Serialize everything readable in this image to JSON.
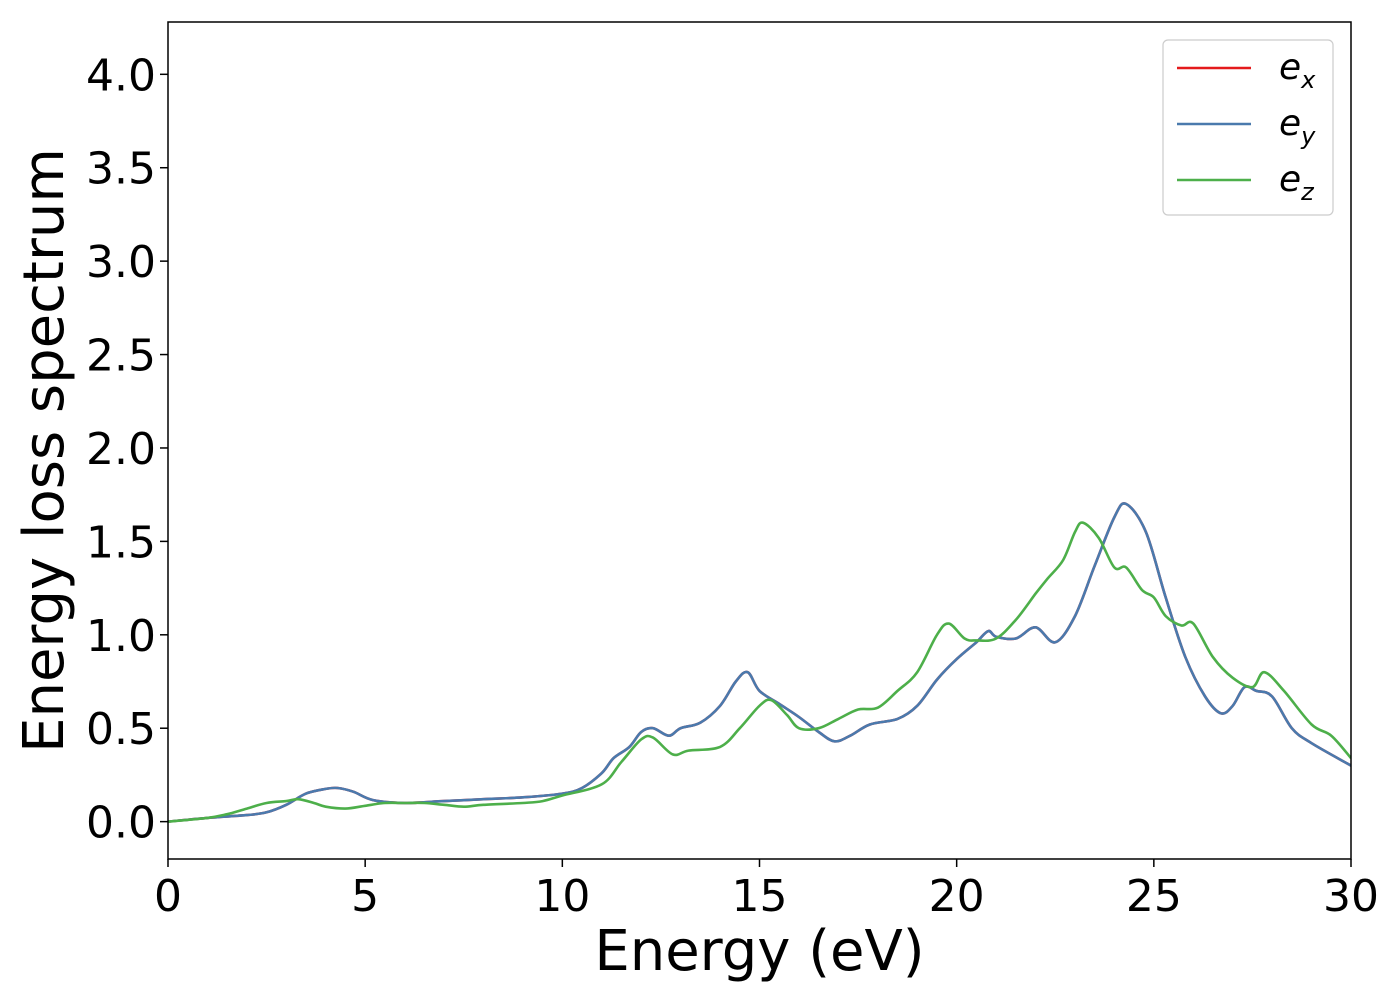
{
  "chart_data": {
    "type": "line",
    "title": "",
    "xlabel": "Energy (eV)",
    "ylabel": "Energy loss spectrum",
    "xlim": [
      0,
      30
    ],
    "ylim": [
      -0.2,
      4.28
    ],
    "xticks": [
      "0",
      "5",
      "10",
      "15",
      "20",
      "25",
      "30"
    ],
    "yticks": [
      "0.0",
      "0.5",
      "1.0",
      "1.5",
      "2.0",
      "2.5",
      "3.0",
      "3.5",
      "4.0"
    ],
    "grid": false,
    "legend_position": "top-right",
    "series": [
      {
        "name": "e",
        "sub": "x",
        "color": "#e41a1c",
        "x": [
          0,
          1,
          2,
          2.5,
          3,
          3.5,
          4,
          4.3,
          4.7,
          5.2,
          6,
          7,
          8,
          9,
          10,
          10.5,
          11,
          11.3,
          11.7,
          12,
          12.3,
          12.7,
          13,
          13.5,
          14,
          14.4,
          14.7,
          15,
          15.5,
          16,
          16.5,
          16.9,
          17.3,
          17.8,
          18.5,
          19,
          19.5,
          20,
          20.5,
          20.8,
          21,
          21.5,
          22,
          22.5,
          23,
          23.5,
          24,
          24.3,
          24.8,
          25.3,
          25.8,
          26.3,
          26.7,
          27,
          27.3,
          27.6,
          28,
          28.5,
          29,
          30
        ],
        "y": [
          0,
          0.02,
          0.035,
          0.05,
          0.09,
          0.15,
          0.175,
          0.18,
          0.16,
          0.115,
          0.1,
          0.11,
          0.12,
          0.13,
          0.15,
          0.18,
          0.26,
          0.34,
          0.4,
          0.48,
          0.5,
          0.46,
          0.5,
          0.53,
          0.62,
          0.75,
          0.8,
          0.7,
          0.63,
          0.56,
          0.48,
          0.43,
          0.46,
          0.52,
          0.55,
          0.62,
          0.76,
          0.87,
          0.96,
          1.02,
          0.99,
          0.98,
          1.04,
          0.96,
          1.1,
          1.37,
          1.63,
          1.7,
          1.55,
          1.2,
          0.88,
          0.67,
          0.58,
          0.62,
          0.72,
          0.7,
          0.67,
          0.5,
          0.42,
          0.3
        ]
      },
      {
        "name": "e",
        "sub": "y",
        "color": "#4a7aad",
        "x": [
          0,
          1,
          2,
          2.5,
          3,
          3.5,
          4,
          4.3,
          4.7,
          5.2,
          6,
          7,
          8,
          9,
          10,
          10.5,
          11,
          11.3,
          11.7,
          12,
          12.3,
          12.7,
          13,
          13.5,
          14,
          14.4,
          14.7,
          15,
          15.5,
          16,
          16.5,
          16.9,
          17.3,
          17.8,
          18.5,
          19,
          19.5,
          20,
          20.5,
          20.8,
          21,
          21.5,
          22,
          22.5,
          23,
          23.5,
          24,
          24.3,
          24.8,
          25.3,
          25.8,
          26.3,
          26.7,
          27,
          27.3,
          27.6,
          28,
          28.5,
          29,
          30
        ],
        "y": [
          0,
          0.02,
          0.035,
          0.05,
          0.09,
          0.15,
          0.175,
          0.18,
          0.16,
          0.115,
          0.1,
          0.11,
          0.12,
          0.13,
          0.15,
          0.18,
          0.26,
          0.34,
          0.4,
          0.48,
          0.5,
          0.46,
          0.5,
          0.53,
          0.62,
          0.75,
          0.8,
          0.7,
          0.63,
          0.56,
          0.48,
          0.43,
          0.46,
          0.52,
          0.55,
          0.62,
          0.76,
          0.87,
          0.96,
          1.02,
          0.99,
          0.98,
          1.04,
          0.96,
          1.1,
          1.37,
          1.63,
          1.7,
          1.55,
          1.2,
          0.88,
          0.67,
          0.58,
          0.62,
          0.72,
          0.7,
          0.67,
          0.5,
          0.42,
          0.3
        ]
      },
      {
        "name": "e",
        "sub": "z",
        "color": "#4daf4a",
        "x": [
          0,
          1,
          1.5,
          2,
          2.5,
          3,
          3.3,
          3.7,
          4,
          4.5,
          5,
          5.5,
          6,
          6.5,
          7,
          7.5,
          8,
          9,
          9.5,
          10,
          11,
          11.5,
          12,
          12.3,
          12.8,
          13.2,
          14,
          14.5,
          15,
          15.3,
          15.7,
          16,
          16.5,
          17,
          17.5,
          18,
          18.5,
          19,
          19.5,
          19.8,
          20.2,
          20.5,
          21,
          21.5,
          22,
          22.3,
          22.7,
          23,
          23.2,
          23.6,
          24,
          24.3,
          24.7,
          25,
          25.3,
          25.7,
          26,
          26.5,
          27,
          27.5,
          27.8,
          28.3,
          29,
          29.5,
          30
        ],
        "y": [
          0,
          0.02,
          0.04,
          0.07,
          0.1,
          0.11,
          0.12,
          0.1,
          0.08,
          0.07,
          0.085,
          0.1,
          0.1,
          0.1,
          0.09,
          0.08,
          0.09,
          0.1,
          0.11,
          0.14,
          0.2,
          0.32,
          0.44,
          0.45,
          0.36,
          0.38,
          0.4,
          0.5,
          0.62,
          0.65,
          0.57,
          0.5,
          0.5,
          0.55,
          0.6,
          0.61,
          0.7,
          0.8,
          1.0,
          1.06,
          0.98,
          0.97,
          0.98,
          1.08,
          1.22,
          1.3,
          1.4,
          1.55,
          1.6,
          1.52,
          1.36,
          1.36,
          1.24,
          1.2,
          1.1,
          1.05,
          1.06,
          0.88,
          0.77,
          0.72,
          0.8,
          0.7,
          0.52,
          0.46,
          0.34
        ]
      }
    ]
  }
}
